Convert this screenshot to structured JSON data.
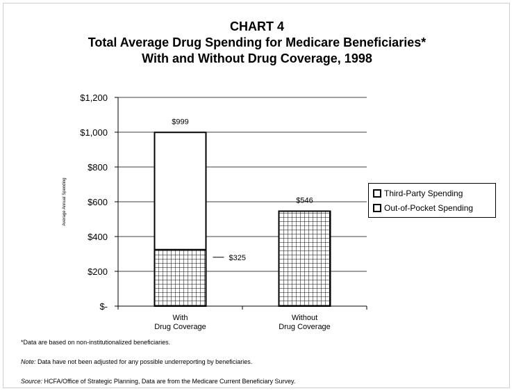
{
  "title": {
    "line1": "CHART 4",
    "line2": "Total Average Drug Spending for Medicare Beneficiaries*",
    "line3": "With and Without Drug Coverage, 1998"
  },
  "chart_data": {
    "type": "bar",
    "stacked": true,
    "categories": [
      "With\nDrug Coverage",
      "Without\nDrug Coverage"
    ],
    "series": [
      {
        "name": "Out-of-Pocket Spending",
        "values": [
          325,
          546
        ],
        "pattern": "grid"
      },
      {
        "name": "Third-Party Spending",
        "values": [
          674,
          0
        ],
        "pattern": "none"
      }
    ],
    "totals": [
      999,
      546
    ],
    "data_labels": [
      "$999",
      "$546",
      "$325"
    ],
    "ylabel": "Average Annual Spending",
    "ylim": [
      0,
      1200
    ],
    "yticks": [
      0,
      200,
      400,
      600,
      800,
      1000,
      1200
    ],
    "ytick_labels": [
      "$-",
      "$200",
      "$400",
      "$600",
      "$800",
      "$1,000",
      "$1,200"
    ],
    "grid": true,
    "legend_position": "right"
  },
  "legend": {
    "items": [
      "Third-Party Spending",
      "Out-of-Pocket Spending"
    ]
  },
  "notes": {
    "footnote": "*Data are based on non-institutionalized beneficiaries.",
    "note_label": "Note:",
    "note_text": " Data have not been adjusted for any possible underreporting by beneficiaries.",
    "source_label": "Source:",
    "source_text": " HCFA/Office of Strategic Planning,  Data are from the Medicare Current Beneficiary Survey."
  },
  "colors": {
    "bar_border": "#000000",
    "grid": "#000000",
    "background": "#ffffff"
  }
}
